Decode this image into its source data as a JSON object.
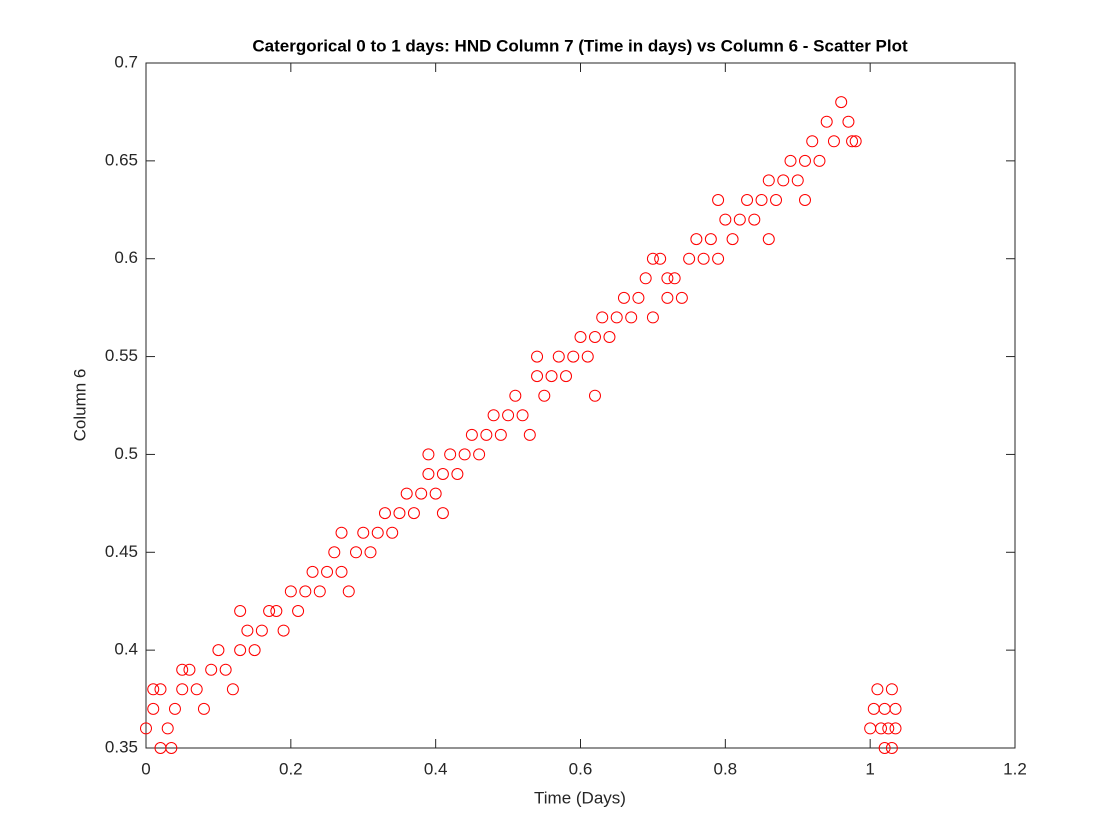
{
  "chart_data": {
    "type": "scatter",
    "title": "Catergorical 0 to 1 days: HND Column 7 (Time in days) vs Column 6 - Scatter Plot",
    "x_label": "Time (Days)",
    "y_label": "Column 6",
    "color": "#ff0000",
    "xlim": [
      0,
      1.2
    ],
    "xticks": [
      0,
      0.2,
      0.4,
      0.6,
      0.8,
      1,
      1.2
    ],
    "ylim": [
      0.35,
      0.7
    ],
    "yticks": [
      0.35,
      0.4,
      0.45,
      0.5,
      0.55,
      0.6,
      0.65,
      0.7
    ],
    "grid": false,
    "x": [
      0.0,
      0.01,
      0.02,
      0.03,
      0.04,
      0.05,
      0.06,
      0.07,
      0.08,
      0.09,
      0.1,
      0.11,
      0.12,
      0.13,
      0.14,
      0.15,
      0.16,
      0.17,
      0.18,
      0.19,
      0.2,
      0.21,
      0.22,
      0.23,
      0.24,
      0.25,
      0.26,
      0.27,
      0.28,
      0.29,
      0.3,
      0.31,
      0.32,
      0.33,
      0.34,
      0.35,
      0.36,
      0.37,
      0.38,
      0.39,
      0.4,
      0.41,
      0.42,
      0.43,
      0.44,
      0.45,
      0.46,
      0.47,
      0.48,
      0.49,
      0.5,
      0.51,
      0.52,
      0.53,
      0.54,
      0.55,
      0.56,
      0.57,
      0.58,
      0.59,
      0.6,
      0.61,
      0.62,
      0.63,
      0.64,
      0.65,
      0.66,
      0.67,
      0.68,
      0.69,
      0.7,
      0.71,
      0.72,
      0.73,
      0.74,
      0.75,
      0.76,
      0.77,
      0.78,
      0.79,
      0.8,
      0.81,
      0.82,
      0.83,
      0.84,
      0.85,
      0.86,
      0.87,
      0.88,
      0.89,
      0.9,
      0.91,
      0.92,
      0.93,
      0.94,
      0.95,
      0.96,
      0.97,
      0.98,
      0.02,
      0.035,
      0.01,
      0.05,
      0.13,
      0.27,
      0.39,
      0.41,
      0.54,
      0.62,
      0.7,
      0.72,
      0.79,
      0.86,
      0.91,
      0.975,
      1.0,
      1.005,
      1.01,
      1.015,
      1.02,
      1.02,
      1.025,
      1.03,
      1.03,
      1.035,
      1.035
    ],
    "values": [
      0.36,
      0.37,
      0.38,
      0.36,
      0.37,
      0.38,
      0.39,
      0.38,
      0.37,
      0.39,
      0.4,
      0.39,
      0.38,
      0.4,
      0.41,
      0.4,
      0.41,
      0.42,
      0.42,
      0.41,
      0.43,
      0.42,
      0.43,
      0.44,
      0.43,
      0.44,
      0.45,
      0.44,
      0.43,
      0.45,
      0.46,
      0.45,
      0.46,
      0.47,
      0.46,
      0.47,
      0.48,
      0.47,
      0.48,
      0.49,
      0.48,
      0.49,
      0.5,
      0.49,
      0.5,
      0.51,
      0.5,
      0.51,
      0.52,
      0.51,
      0.52,
      0.53,
      0.52,
      0.51,
      0.54,
      0.53,
      0.54,
      0.55,
      0.54,
      0.55,
      0.56,
      0.55,
      0.56,
      0.57,
      0.56,
      0.57,
      0.58,
      0.57,
      0.58,
      0.59,
      0.57,
      0.6,
      0.59,
      0.59,
      0.58,
      0.6,
      0.61,
      0.6,
      0.61,
      0.6,
      0.62,
      0.61,
      0.62,
      0.63,
      0.62,
      0.63,
      0.64,
      0.63,
      0.64,
      0.65,
      0.64,
      0.65,
      0.66,
      0.65,
      0.67,
      0.66,
      0.68,
      0.67,
      0.66,
      0.35,
      0.35,
      0.38,
      0.39,
      0.42,
      0.46,
      0.5,
      0.47,
      0.55,
      0.53,
      0.6,
      0.58,
      0.63,
      0.61,
      0.63,
      0.66,
      0.36,
      0.37,
      0.38,
      0.36,
      0.35,
      0.37,
      0.36,
      0.38,
      0.35,
      0.37,
      0.36
    ]
  }
}
